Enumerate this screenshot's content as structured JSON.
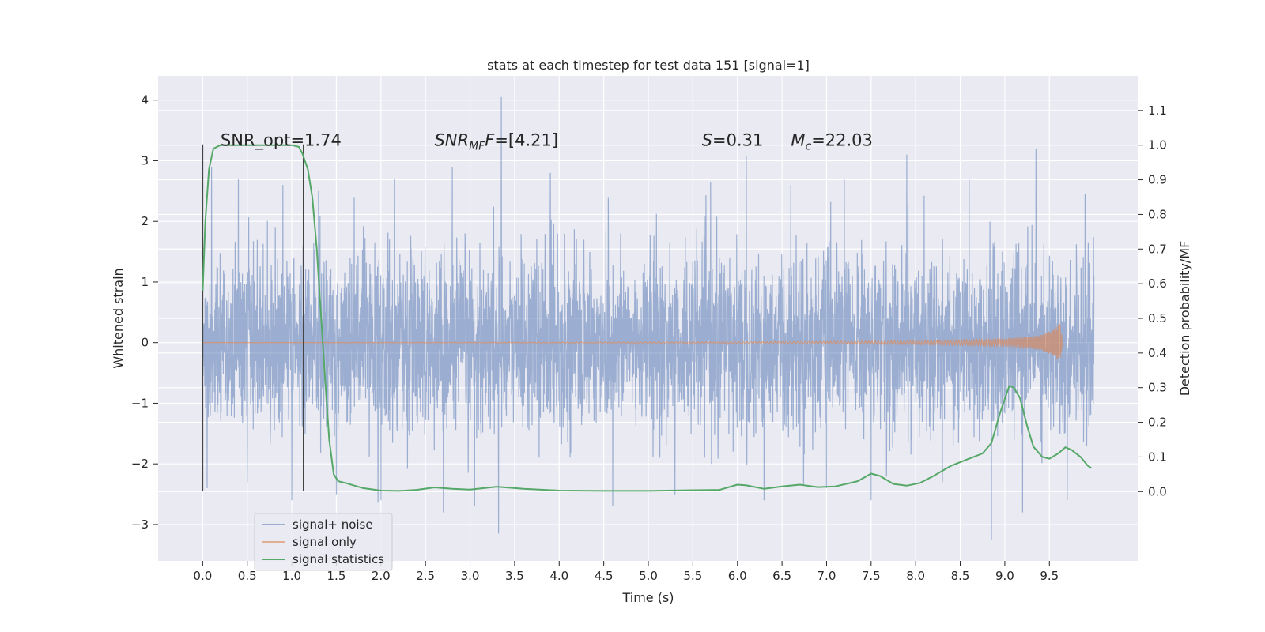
{
  "chart_data": {
    "type": "line",
    "title": "stats at each timestep for test data 151 [signal=1]",
    "xlabel": "Time (s)",
    "ylabel_left": "Whitened strain",
    "ylabel_right": "Detection probability/MF",
    "xlim": [
      -0.5,
      10.5
    ],
    "ylim_left": [
      -3.6,
      4.4
    ],
    "ylim_right": [
      -0.2,
      1.2
    ],
    "x_ticks": [
      0.0,
      0.5,
      1.0,
      1.5,
      2.0,
      2.5,
      3.0,
      3.5,
      4.0,
      4.5,
      5.0,
      5.5,
      6.0,
      6.5,
      7.0,
      7.5,
      8.0,
      8.5,
      9.0,
      9.5
    ],
    "x_tick_labels": [
      "0.0",
      "0.5",
      "1.0",
      "1.5",
      "2.0",
      "2.5",
      "3.0",
      "3.5",
      "4.0",
      "4.5",
      "5.0",
      "5.5",
      "6.0",
      "6.5",
      "7.0",
      "7.5",
      "8.0",
      "8.5",
      "9.0",
      "9.5"
    ],
    "y_left_ticks": [
      -3,
      -2,
      -1,
      0,
      1,
      2,
      3,
      4
    ],
    "y_left_tick_labels": [
      "−3",
      "−2",
      "−1",
      "0",
      "1",
      "2",
      "3",
      "4"
    ],
    "y_right_ticks": [
      0.0,
      0.1,
      0.2,
      0.3,
      0.4,
      0.5,
      0.6,
      0.7,
      0.8,
      0.9,
      1.0,
      1.1
    ],
    "y_right_tick_labels": [
      "0.0",
      "0.1",
      "0.2",
      "0.3",
      "0.4",
      "0.5",
      "0.6",
      "0.7",
      "0.8",
      "0.9",
      "1.0",
      "1.1"
    ],
    "grid": true,
    "legend_placement": "lower-left",
    "series": [
      {
        "name": "signal+ noise",
        "axis": "left",
        "color": "#4c72b0",
        "opacity": 0.5,
        "x_range": [
          0.0,
          10.0
        ],
        "approx_typical_amplitude": 1.3,
        "peaks": [
          {
            "x": 0.1,
            "y": 2.9
          },
          {
            "x": 0.4,
            "y": 2.7
          },
          {
            "x": 0.9,
            "y": 2.6
          },
          {
            "x": 1.3,
            "y": 2.5
          },
          {
            "x": 1.7,
            "y": 2.4
          },
          {
            "x": 2.15,
            "y": 2.7
          },
          {
            "x": 2.8,
            "y": 2.9
          },
          {
            "x": 3.35,
            "y": 4.05
          },
          {
            "x": 3.9,
            "y": 2.8
          },
          {
            "x": 4.55,
            "y": 2.4
          },
          {
            "x": 5.3,
            "y": 2.6
          },
          {
            "x": 5.7,
            "y": 2.65
          },
          {
            "x": 6.1,
            "y": 3.08
          },
          {
            "x": 6.6,
            "y": 2.6
          },
          {
            "x": 7.2,
            "y": 2.7
          },
          {
            "x": 7.9,
            "y": 3.1
          },
          {
            "x": 8.6,
            "y": 2.7
          },
          {
            "x": 9.35,
            "y": 3.2
          },
          {
            "x": 9.9,
            "y": 2.45
          }
        ],
        "troughs": [
          {
            "x": 0.05,
            "y": -2.4
          },
          {
            "x": 0.5,
            "y": -2.3
          },
          {
            "x": 1.0,
            "y": -2.6
          },
          {
            "x": 1.5,
            "y": -2.5
          },
          {
            "x": 2.0,
            "y": -2.6
          },
          {
            "x": 2.7,
            "y": -2.8
          },
          {
            "x": 3.05,
            "y": -2.7
          },
          {
            "x": 3.32,
            "y": -3.15
          },
          {
            "x": 4.6,
            "y": -2.7
          },
          {
            "x": 5.3,
            "y": -2.5
          },
          {
            "x": 6.3,
            "y": -2.6
          },
          {
            "x": 7.0,
            "y": -2.4
          },
          {
            "x": 7.5,
            "y": -2.6
          },
          {
            "x": 8.3,
            "y": -2.3
          },
          {
            "x": 8.85,
            "y": -3.25
          },
          {
            "x": 9.2,
            "y": -2.8
          },
          {
            "x": 9.7,
            "y": -2.6
          }
        ]
      },
      {
        "name": "signal only",
        "axis": "left",
        "color": "#dd8452",
        "opacity": 0.6,
        "x_range": [
          0.0,
          9.65
        ],
        "envelope": [
          {
            "x": 0.0,
            "a": 0.0
          },
          {
            "x": 6.0,
            "a": 0.01
          },
          {
            "x": 8.0,
            "a": 0.03
          },
          {
            "x": 9.0,
            "a": 0.06
          },
          {
            "x": 9.4,
            "a": 0.12
          },
          {
            "x": 9.55,
            "a": 0.22
          },
          {
            "x": 9.62,
            "a": 0.33
          },
          {
            "x": 9.65,
            "a": 0.0
          }
        ]
      },
      {
        "name": "signal statistics",
        "axis": "right",
        "color": "#55a868",
        "points": [
          [
            0.0,
            0.58
          ],
          [
            0.03,
            0.78
          ],
          [
            0.07,
            0.93
          ],
          [
            0.12,
            0.99
          ],
          [
            0.2,
            1.0
          ],
          [
            0.4,
            1.0
          ],
          [
            0.7,
            1.0
          ],
          [
            0.9,
            1.0
          ],
          [
            1.0,
            1.0
          ],
          [
            1.08,
            0.995
          ],
          [
            1.12,
            0.975
          ],
          [
            1.18,
            0.93
          ],
          [
            1.23,
            0.85
          ],
          [
            1.28,
            0.7
          ],
          [
            1.33,
            0.5
          ],
          [
            1.38,
            0.3
          ],
          [
            1.42,
            0.15
          ],
          [
            1.47,
            0.05
          ],
          [
            1.52,
            0.03
          ],
          [
            1.6,
            0.025
          ],
          [
            1.8,
            0.01
          ],
          [
            2.0,
            0.003
          ],
          [
            2.2,
            0.002
          ],
          [
            2.4,
            0.005
          ],
          [
            2.6,
            0.012
          ],
          [
            2.8,
            0.008
          ],
          [
            3.0,
            0.006
          ],
          [
            3.3,
            0.014
          ],
          [
            3.6,
            0.008
          ],
          [
            4.0,
            0.003
          ],
          [
            4.5,
            0.002
          ],
          [
            5.0,
            0.002
          ],
          [
            5.5,
            0.004
          ],
          [
            5.8,
            0.005
          ],
          [
            6.0,
            0.02
          ],
          [
            6.1,
            0.018
          ],
          [
            6.3,
            0.008
          ],
          [
            6.5,
            0.015
          ],
          [
            6.7,
            0.02
          ],
          [
            6.9,
            0.013
          ],
          [
            7.1,
            0.015
          ],
          [
            7.35,
            0.03
          ],
          [
            7.5,
            0.052
          ],
          [
            7.6,
            0.045
          ],
          [
            7.75,
            0.022
          ],
          [
            7.9,
            0.017
          ],
          [
            8.05,
            0.025
          ],
          [
            8.2,
            0.045
          ],
          [
            8.4,
            0.075
          ],
          [
            8.6,
            0.095
          ],
          [
            8.75,
            0.11
          ],
          [
            8.85,
            0.14
          ],
          [
            8.95,
            0.23
          ],
          [
            9.05,
            0.305
          ],
          [
            9.1,
            0.3
          ],
          [
            9.17,
            0.27
          ],
          [
            9.25,
            0.19
          ],
          [
            9.32,
            0.13
          ],
          [
            9.42,
            0.1
          ],
          [
            9.5,
            0.095
          ],
          [
            9.6,
            0.11
          ],
          [
            9.68,
            0.128
          ],
          [
            9.75,
            0.12
          ],
          [
            9.85,
            0.1
          ],
          [
            9.93,
            0.075
          ],
          [
            9.97,
            0.068
          ]
        ]
      }
    ],
    "markers": [
      {
        "x": 0.0,
        "y_from": -2.45,
        "y_to": 3.27,
        "color": "#444444"
      },
      {
        "x": 1.13,
        "y_from": -2.45,
        "y_to": 3.27,
        "color": "#444444"
      }
    ],
    "annotations": [
      {
        "id": "snr-opt",
        "text": "SNR_opt=1.74",
        "x": 0.2,
        "y": 3.25
      },
      {
        "id": "snr-mf",
        "base": "SNR",
        "sub": "MF",
        "rest": "F=[4.21]",
        "x": 2.6,
        "y": 3.25
      },
      {
        "id": "s-stat",
        "base": "S",
        "rest": "=0.31",
        "x": 5.6,
        "y": 3.25
      },
      {
        "id": "mc",
        "base": "M",
        "sub": "c",
        "rest": "=22.03",
        "x": 6.6,
        "y": 3.25
      }
    ]
  }
}
